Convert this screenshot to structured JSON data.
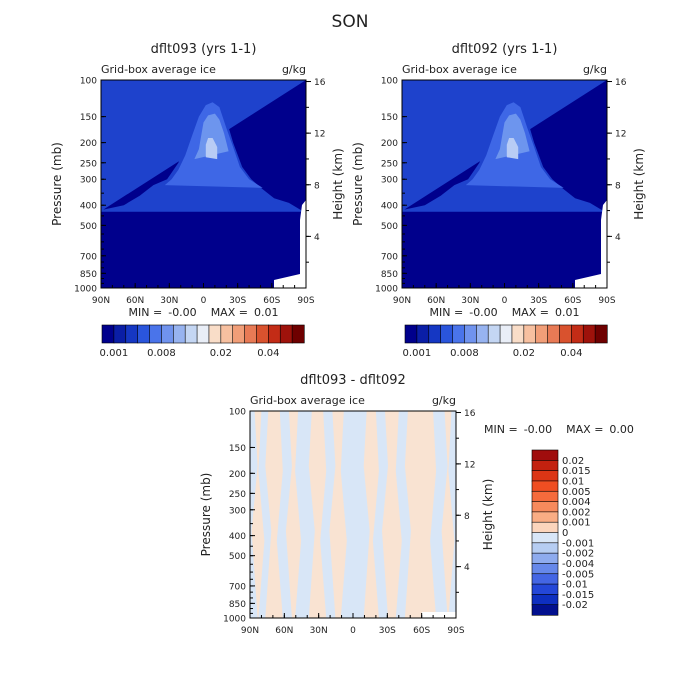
{
  "figure": {
    "title": "SON"
  },
  "chart_data": [
    {
      "type": "heatmap",
      "title": "dflt093 (yrs 1-1)",
      "subtitle": "Grid-box average ice",
      "units": "g/kg",
      "xlabel": "",
      "ylabel": "Pressure (mb)",
      "y2label": "Height (km)",
      "x_ticks": [
        "90N",
        "60N",
        "30N",
        "0",
        "30S",
        "60S",
        "90S"
      ],
      "y_ticks": [
        100,
        150,
        200,
        250,
        300,
        400,
        500,
        700,
        850,
        1000
      ],
      "y_scale": "log",
      "y2_ticks": [
        16,
        12,
        8,
        4
      ],
      "stats": {
        "min_label": "MIN =",
        "min": "-0.00",
        "max_label": "MAX =",
        "max": "0.01"
      },
      "colorbar": {
        "orientation": "horizontal",
        "labels": [
          "0.001",
          "0.008",
          "0.02",
          "0.04"
        ],
        "colors": [
          "#00008c",
          "#0a1ea6",
          "#1537c3",
          "#2a55dc",
          "#4a74ea",
          "#7093ee",
          "#97b3f0",
          "#c4d6f3",
          "#e9eef7",
          "#f9ddc8",
          "#f7c0a0",
          "#f19e78",
          "#e87a55",
          "#d9522e",
          "#c32c16",
          "#9e120b",
          "#6e0000"
        ]
      },
      "fields": [
        {
          "level": "0.008",
          "color": "#1e42cc",
          "points": [
            [
              -88,
              430
            ],
            [
              -75,
              390
            ],
            [
              -62,
              370
            ],
            [
              -52,
              335
            ],
            [
              -42,
              300
            ],
            [
              -34,
              262
            ],
            [
              -26,
              200
            ],
            [
              -16,
              130
            ],
            [
              -6,
              120
            ],
            [
              4,
              135
            ],
            [
              14,
              190
            ],
            [
              22,
              250
            ],
            [
              32,
              300
            ],
            [
              44,
              320
            ],
            [
              56,
              360
            ],
            [
              70,
              400
            ],
            [
              88,
              420
            ]
          ]
        },
        {
          "level": "0.02",
          "color": "#3e67e6",
          "points": [
            [
              -52,
              330
            ],
            [
              -40,
              300
            ],
            [
              -32,
              262
            ],
            [
              -26,
              210
            ],
            [
              -20,
              170
            ],
            [
              -14,
              135
            ],
            [
              -8,
              128
            ],
            [
              -2,
              132
            ],
            [
              4,
              150
            ],
            [
              10,
              185
            ],
            [
              16,
              230
            ],
            [
              22,
              270
            ],
            [
              28,
              300
            ],
            [
              34,
              320
            ]
          ]
        },
        {
          "level": "0.04",
          "color": "#6d95ee",
          "points": [
            [
              -22,
              220
            ],
            [
              -18,
              180
            ],
            [
              -14,
              155
            ],
            [
              -10,
              145
            ],
            [
              -4,
              148
            ],
            [
              0,
              160
            ],
            [
              2,
              185
            ],
            [
              4,
              215
            ],
            [
              8,
              240
            ]
          ]
        },
        {
          "level": "0.06",
          "color": "#b8ccf5",
          "points": [
            [
              -12,
              240
            ],
            [
              -12,
              210
            ],
            [
              -8,
              190
            ],
            [
              -4,
              190
            ],
            [
              -2,
              205
            ],
            [
              -2,
              235
            ]
          ]
        }
      ]
    },
    {
      "type": "heatmap",
      "title": "dflt092 (yrs 1-1)",
      "subtitle": "Grid-box average ice",
      "units": "g/kg",
      "xlabel": "",
      "ylabel": "Pressure (mb)",
      "y2label": "Height (km)",
      "x_ticks": [
        "90N",
        "60N",
        "30N",
        "0",
        "30S",
        "60S",
        "90S"
      ],
      "y_ticks": [
        100,
        150,
        200,
        250,
        300,
        400,
        500,
        700,
        850,
        1000
      ],
      "y_scale": "log",
      "y2_ticks": [
        16,
        12,
        8,
        4
      ],
      "stats": {
        "min_label": "MIN =",
        "min": "-0.00",
        "max_label": "MAX =",
        "max": "0.01"
      },
      "colorbar": {
        "orientation": "horizontal",
        "labels": [
          "0.001",
          "0.008",
          "0.02",
          "0.04"
        ],
        "colors": [
          "#00008c",
          "#0a1ea6",
          "#1537c3",
          "#2a55dc",
          "#4a74ea",
          "#7093ee",
          "#97b3f0",
          "#c4d6f3",
          "#e9eef7",
          "#f9ddc8",
          "#f7c0a0",
          "#f19e78",
          "#e87a55",
          "#d9522e",
          "#c32c16",
          "#9e120b",
          "#6e0000"
        ]
      },
      "fields": [
        {
          "level": "0.008",
          "color": "#1e42cc",
          "points": [
            [
              -88,
              430
            ],
            [
              -75,
              390
            ],
            [
              -62,
              370
            ],
            [
              -52,
              335
            ],
            [
              -42,
              300
            ],
            [
              -34,
              262
            ],
            [
              -26,
              200
            ],
            [
              -16,
              130
            ],
            [
              -6,
              120
            ],
            [
              4,
              135
            ],
            [
              14,
              190
            ],
            [
              22,
              250
            ],
            [
              32,
              300
            ],
            [
              44,
              320
            ],
            [
              56,
              360
            ],
            [
              70,
              400
            ],
            [
              88,
              420
            ]
          ]
        },
        {
          "level": "0.02",
          "color": "#3e67e6",
          "points": [
            [
              -52,
              330
            ],
            [
              -40,
              300
            ],
            [
              -32,
              262
            ],
            [
              -26,
              210
            ],
            [
              -20,
              170
            ],
            [
              -14,
              135
            ],
            [
              -8,
              128
            ],
            [
              -2,
              132
            ],
            [
              4,
              150
            ],
            [
              10,
              185
            ],
            [
              16,
              230
            ],
            [
              22,
              270
            ],
            [
              28,
              300
            ],
            [
              34,
              320
            ]
          ]
        },
        {
          "level": "0.04",
          "color": "#6d95ee",
          "points": [
            [
              -22,
              220
            ],
            [
              -18,
              180
            ],
            [
              -14,
              155
            ],
            [
              -10,
              145
            ],
            [
              -4,
              148
            ],
            [
              0,
              160
            ],
            [
              2,
              185
            ],
            [
              4,
              215
            ],
            [
              8,
              240
            ]
          ]
        },
        {
          "level": "0.06",
          "color": "#b8ccf5",
          "points": [
            [
              -12,
              240
            ],
            [
              -12,
              210
            ],
            [
              -8,
              190
            ],
            [
              -4,
              190
            ],
            [
              -2,
              205
            ],
            [
              -2,
              235
            ]
          ]
        }
      ]
    },
    {
      "type": "heatmap",
      "title": "dflt093 - dflt092",
      "subtitle": "Grid-box average ice",
      "units": "g/kg",
      "xlabel": "",
      "ylabel": "Pressure (mb)",
      "y2label": "Height (km)",
      "x_ticks": [
        "90N",
        "60N",
        "30N",
        "0",
        "30S",
        "60S",
        "90S"
      ],
      "y_ticks": [
        100,
        150,
        200,
        250,
        300,
        400,
        500,
        700,
        850,
        1000
      ],
      "y_scale": "log",
      "y2_ticks": [
        16,
        12,
        8,
        4
      ],
      "stats": {
        "min_label": "MIN =",
        "min": "-0.00",
        "max_label": "MAX =",
        "max": "0.00"
      },
      "background_color": "#d8e6f7",
      "band_color": "#f9e3d2",
      "positive_bands_lat": [
        [
          -86,
          -80
        ],
        [
          -70,
          -48
        ],
        [
          -40,
          -28
        ],
        [
          -20,
          -12
        ],
        [
          8,
          18
        ],
        [
          26,
          36
        ],
        [
          48,
          56
        ],
        [
          64,
          74
        ],
        [
          80,
          86
        ]
      ],
      "colorbar": {
        "orientation": "vertical",
        "labels": [
          "0.02",
          "0.015",
          "0.01",
          "0.005",
          "0.004",
          "0.002",
          "0.001",
          "0",
          "-0.001",
          "-0.002",
          "-0.004",
          "-0.005",
          "-0.01",
          "-0.015",
          "-0.02"
        ],
        "colors": [
          "#a00d0d",
          "#c3210f",
          "#dc3515",
          "#ef4e22",
          "#f56b3c",
          "#f78a5c",
          "#f9ad84",
          "#fbd5bc",
          "#d8e6f7",
          "#b6cdf2",
          "#8eabee",
          "#6688ea",
          "#4466e4",
          "#2447d8",
          "#0e2fc0",
          "#02108e"
        ]
      }
    }
  ]
}
